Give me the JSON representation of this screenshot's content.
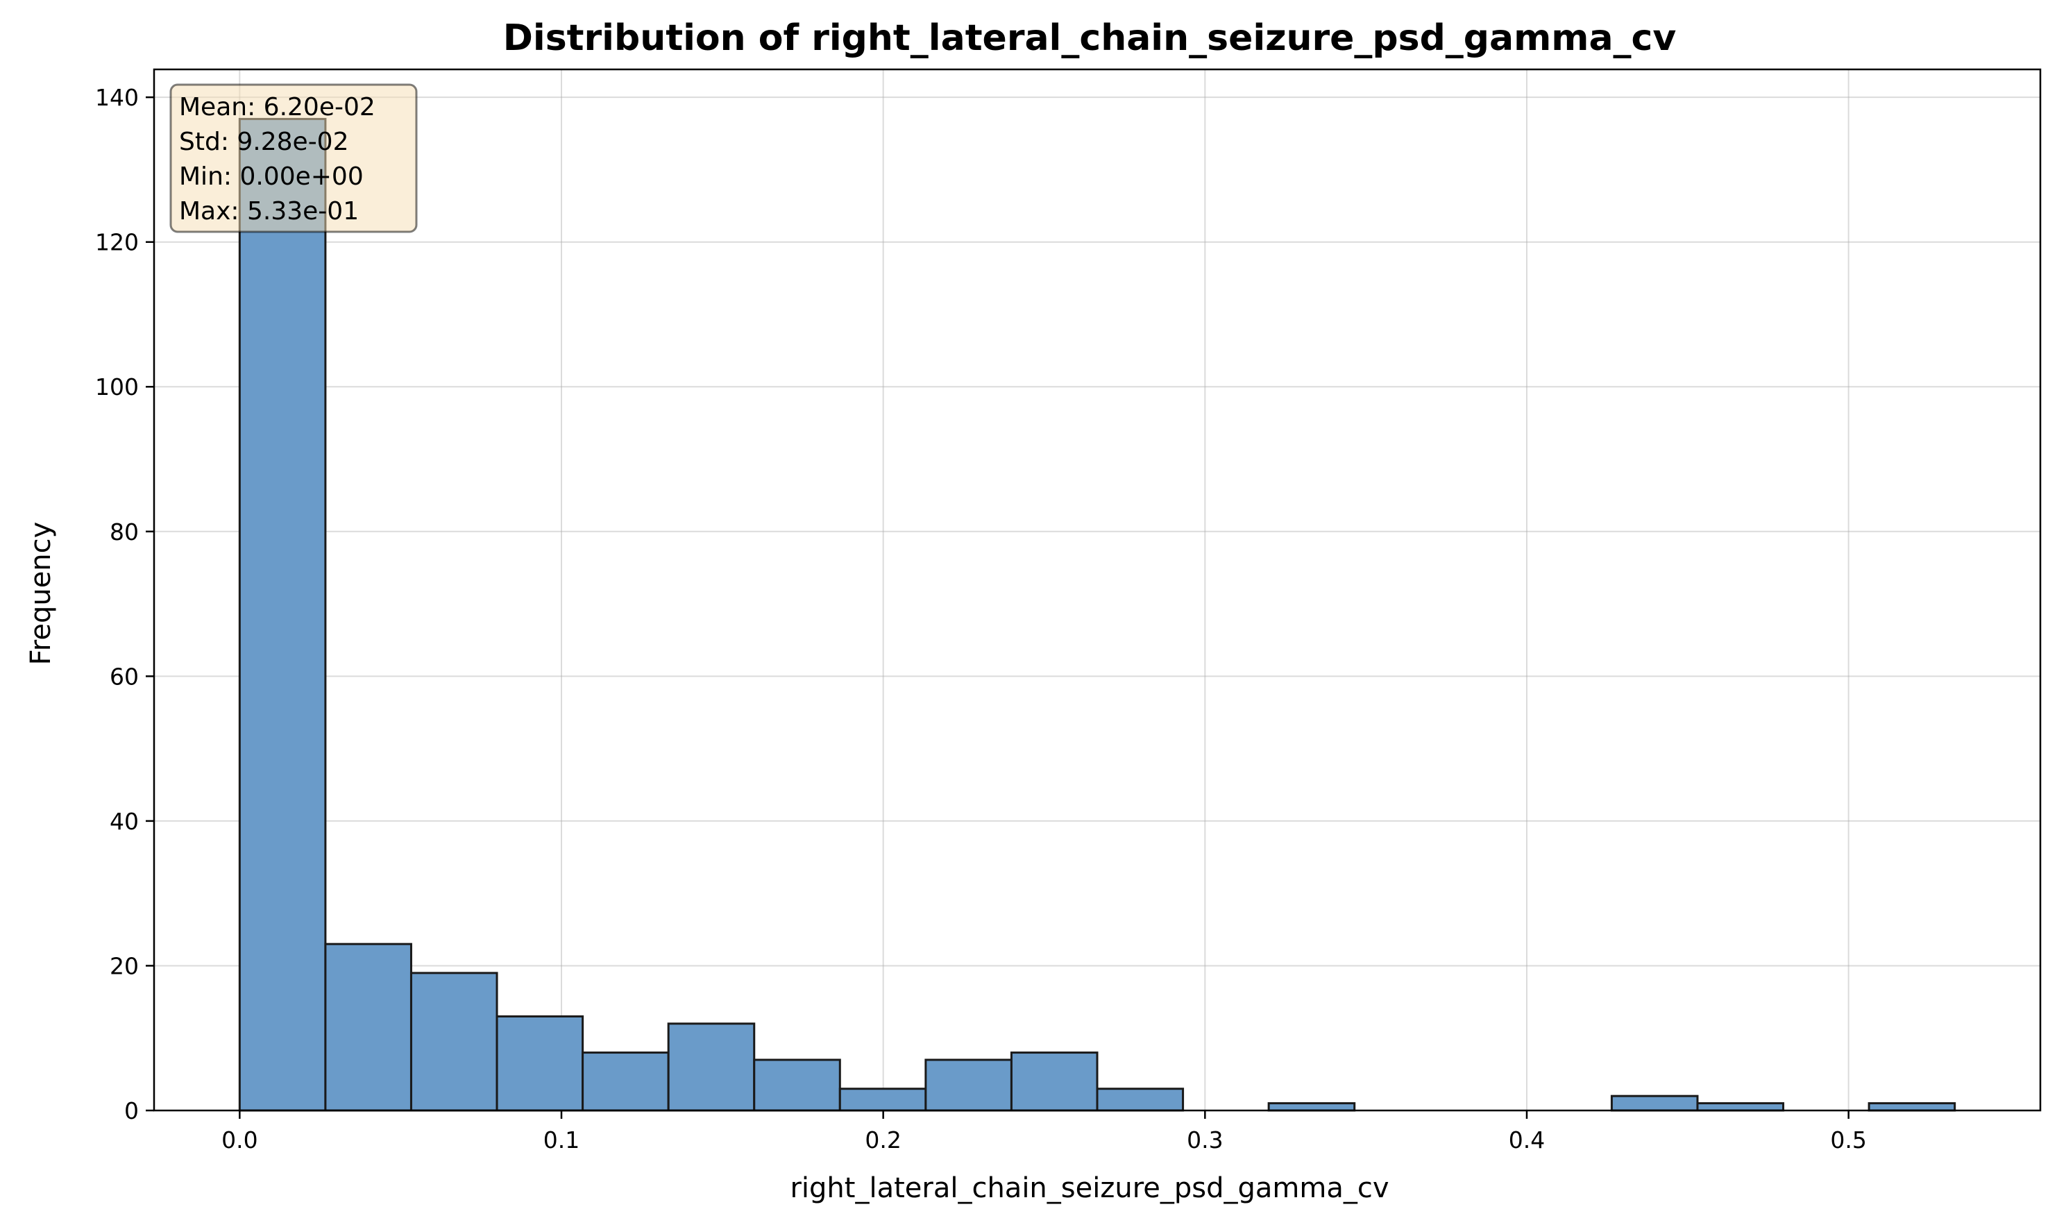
{
  "chart_data": {
    "type": "bar",
    "title": "Distribution of right_lateral_chain_seizure_psd_gamma_cv",
    "xlabel": "right_lateral_chain_seizure_psd_gamma_cv",
    "ylabel": "Frequency",
    "xlim": [
      -0.0266,
      0.5596
    ],
    "ylim": [
      0,
      143.85
    ],
    "xticks": [
      0.0,
      0.1,
      0.2,
      0.3,
      0.4,
      0.5
    ],
    "xtick_labels": [
      "0.0",
      "0.1",
      "0.2",
      "0.3",
      "0.4",
      "0.5"
    ],
    "yticks": [
      0,
      20,
      40,
      60,
      80,
      100,
      120,
      140
    ],
    "ytick_labels": [
      "0",
      "20",
      "40",
      "60",
      "80",
      "100",
      "120",
      "140"
    ],
    "grid": true,
    "bin_edges": [
      0.0,
      0.02665,
      0.0533,
      0.07995,
      0.1066,
      0.13325,
      0.1599,
      0.18655,
      0.2132,
      0.23985,
      0.2665,
      0.29315,
      0.3198,
      0.34645,
      0.3731,
      0.39975,
      0.4264,
      0.45305,
      0.4797,
      0.50635,
      0.533
    ],
    "values": [
      137,
      23,
      19,
      13,
      8,
      12,
      7,
      3,
      7,
      8,
      3,
      0,
      1,
      0,
      0,
      0,
      2,
      1,
      0,
      1
    ],
    "bar_color": "#6a9bc9",
    "edge_color": "#1a1a1a",
    "stats_box": {
      "lines": [
        "Mean: 6.20e-02",
        "Std: 9.28e-02",
        "Min: 0.00e+00",
        "Max: 5.33e-01"
      ],
      "placement": "top-left",
      "background": "#f5deb3"
    }
  }
}
